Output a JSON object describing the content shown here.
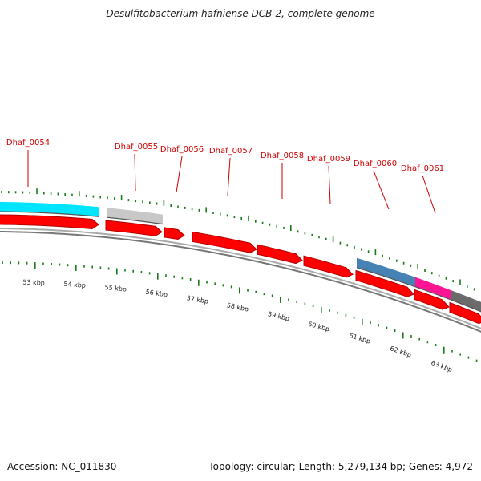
{
  "title": "Desulfitobacterium hafniense DCB-2, complete genome",
  "accession": "Accession: NC_011830",
  "summary": "Topology: circular; Length: 5,279,134 bp; Genes: 4,972",
  "colors": {
    "gene_red": "#ff0000",
    "gene_red_dark": "#b30000",
    "label_red": "#cc0000",
    "tick_green": "#1a7a1a",
    "backbone_gray": "#888888",
    "cyan": "#00e5ff",
    "light_gray": "#c8c8c8",
    "steel_blue": "#4682b4",
    "magenta": "#ff1493",
    "dark_gray": "#6b6b6b"
  },
  "gene_labels": [
    {
      "name": "Dhaf_0054"
    },
    {
      "name": "Dhaf_0055"
    },
    {
      "name": "Dhaf_0056"
    },
    {
      "name": "Dhaf_0057"
    },
    {
      "name": "Dhaf_0058"
    },
    {
      "name": "Dhaf_0059"
    },
    {
      "name": "Dhaf_0060"
    },
    {
      "name": "Dhaf_0061"
    }
  ],
  "kbp_ticks": [
    "53 kbp",
    "54 kbp",
    "55 kbp",
    "56 kbp",
    "57 kbp",
    "58 kbp",
    "59 kbp",
    "60 kbp",
    "61 kbp",
    "62 kbp",
    "63 kbp"
  ],
  "category_bands": [
    {
      "color": "cyan"
    },
    {
      "color": "light_gray"
    },
    {
      "color": "steel_blue"
    },
    {
      "color": "magenta"
    },
    {
      "color": "dark_gray"
    }
  ]
}
